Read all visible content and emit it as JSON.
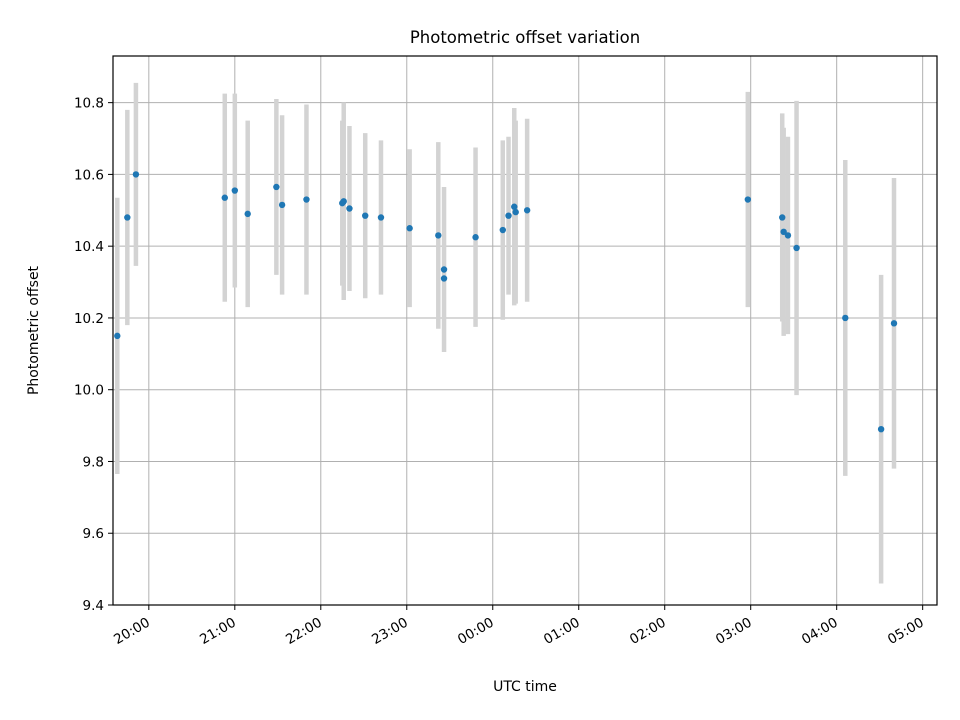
{
  "chart_data": {
    "type": "scatter",
    "title": "Photometric offset variation",
    "xlabel": "UTC time",
    "ylabel": "Photometric offset",
    "x_start": "19:35",
    "x_end": "05:10",
    "x_ticks": [
      "20:00",
      "21:00",
      "22:00",
      "23:00",
      "00:00",
      "01:00",
      "02:00",
      "03:00",
      "04:00",
      "05:00"
    ],
    "ylim": [
      9.4,
      10.93
    ],
    "y_ticks": [
      9.4,
      9.6,
      9.8,
      10.0,
      10.2,
      10.4,
      10.6,
      10.8
    ],
    "grid": true,
    "colors": {
      "point": "#1f77b4",
      "errorbar": "#d3d3d3",
      "grid": "#b0b0b0"
    },
    "points": [
      {
        "x": "19:38",
        "y": 10.15,
        "err": 0.385
      },
      {
        "x": "19:45",
        "y": 10.48,
        "err": 0.3
      },
      {
        "x": "19:51",
        "y": 10.6,
        "err": 0.255
      },
      {
        "x": "20:53",
        "y": 10.535,
        "err": 0.29
      },
      {
        "x": "21:00",
        "y": 10.555,
        "err": 0.27
      },
      {
        "x": "21:09",
        "y": 10.49,
        "err": 0.26
      },
      {
        "x": "21:29",
        "y": 10.565,
        "err": 0.245
      },
      {
        "x": "21:33",
        "y": 10.515,
        "err": 0.25
      },
      {
        "x": "21:50",
        "y": 10.53,
        "err": 0.265
      },
      {
        "x": "22:15",
        "y": 10.52,
        "err": 0.23
      },
      {
        "x": "22:16",
        "y": 10.525,
        "err": 0.275
      },
      {
        "x": "22:20",
        "y": 10.505,
        "err": 0.23
      },
      {
        "x": "22:31",
        "y": 10.485,
        "err": 0.23
      },
      {
        "x": "22:42",
        "y": 10.48,
        "err": 0.215
      },
      {
        "x": "23:02",
        "y": 10.45,
        "err": 0.22
      },
      {
        "x": "23:22",
        "y": 10.43,
        "err": 0.26
      },
      {
        "x": "23:26",
        "y": 10.335,
        "err": 0.23
      },
      {
        "x": "23:26",
        "y": 10.31,
        "err": 0.0
      },
      {
        "x": "23:48",
        "y": 10.425,
        "err": 0.25
      },
      {
        "x": "00:07",
        "y": 10.445,
        "err": 0.25
      },
      {
        "x": "00:11",
        "y": 10.485,
        "err": 0.22
      },
      {
        "x": "00:15",
        "y": 10.51,
        "err": 0.275
      },
      {
        "x": "00:16",
        "y": 10.495,
        "err": 0.255
      },
      {
        "x": "00:24",
        "y": 10.5,
        "err": 0.255
      },
      {
        "x": "02:58",
        "y": 10.53,
        "err": 0.3
      },
      {
        "x": "03:22",
        "y": 10.48,
        "err": 0.29
      },
      {
        "x": "03:23",
        "y": 10.44,
        "err": 0.29
      },
      {
        "x": "03:26",
        "y": 10.43,
        "err": 0.275
      },
      {
        "x": "03:32",
        "y": 10.395,
        "err": 0.41
      },
      {
        "x": "04:06",
        "y": 10.2,
        "err": 0.44
      },
      {
        "x": "04:31",
        "y": 9.89,
        "err": 0.43
      },
      {
        "x": "04:40",
        "y": 10.185,
        "err": 0.405
      }
    ]
  }
}
